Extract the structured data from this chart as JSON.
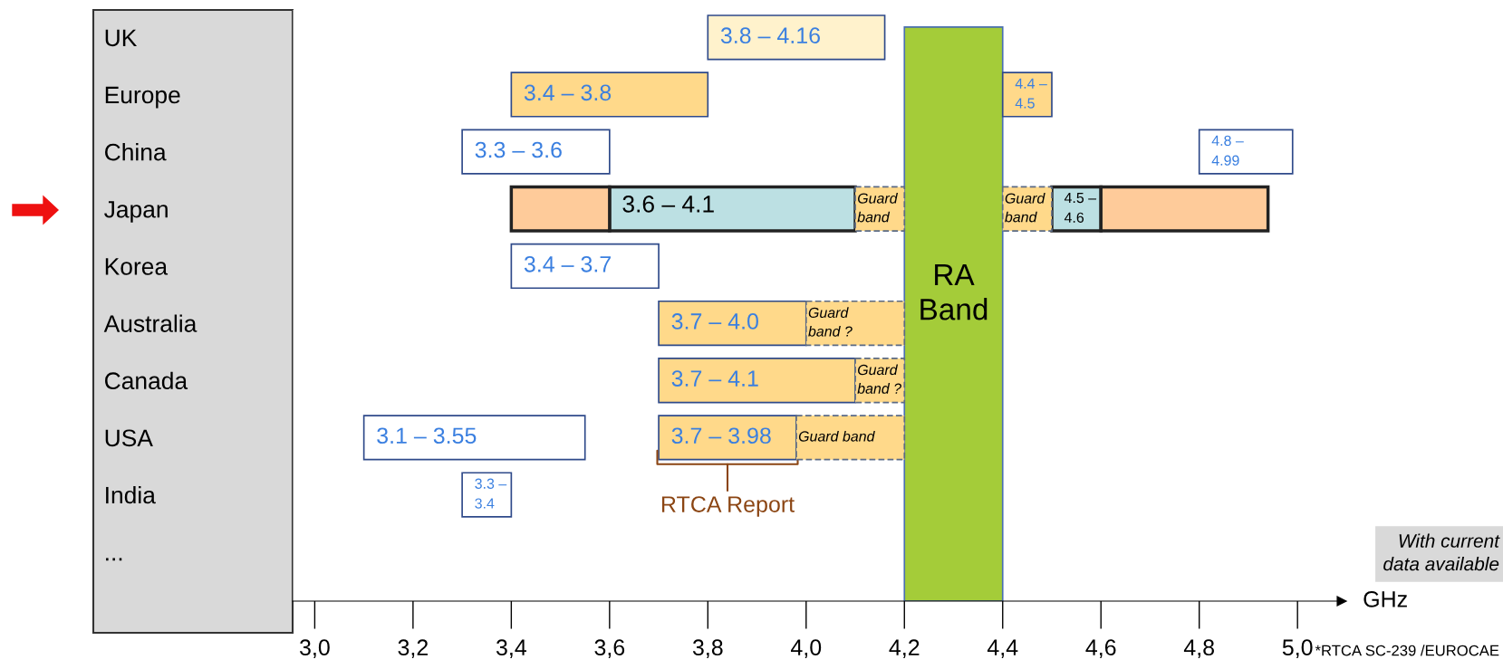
{
  "chart_data": {
    "type": "bar",
    "orientation": "horizontal",
    "categories": [
      "UK",
      "Europe",
      "China",
      "Japan",
      "Korea",
      "Australia",
      "Canada",
      "USA",
      "India",
      "..."
    ],
    "series": [
      {
        "base": [
          3.8,
          3.4,
          3.3,
          3.6,
          3.4,
          3.7,
          3.7,
          3.7,
          3.3,
          null
        ],
        "values": [
          0.36,
          0.4,
          0.3,
          0.5,
          0.3,
          0.3,
          0.4,
          0.28,
          0.1,
          null
        ],
        "colors": [
          "#fff2cc",
          "#ffd98a",
          "#ffffff",
          "#bce0e3",
          "#ffffff",
          "#ffd98a",
          "#ffd98a",
          "#ffd98a",
          "#ffffff",
          null
        ]
      },
      {
        "base": [
          null,
          4.4,
          4.8,
          4.5,
          null,
          null,
          null,
          3.1,
          null,
          null
        ],
        "values": [
          null,
          0.1,
          0.19,
          0.1,
          null,
          null,
          null,
          0.45,
          null,
          null
        ],
        "colors": [
          null,
          "#ffd98a",
          "#ffffff",
          "#bce0e3",
          null,
          null,
          null,
          "#ffffff",
          null,
          null
        ]
      },
      {
        "base": [
          null,
          null,
          null,
          3.4,
          null,
          null,
          null,
          null,
          null,
          null
        ],
        "values": [
          null,
          null,
          null,
          0.2,
          null,
          null,
          null,
          null,
          null,
          null
        ],
        "colors": [
          null,
          null,
          null,
          "#fecb9a",
          null,
          null,
          null,
          null,
          null,
          null
        ]
      },
      {
        "base": [
          null,
          null,
          null,
          4.6,
          null,
          null,
          null,
          null,
          null,
          null
        ],
        "values": [
          null,
          null,
          null,
          0.34,
          null,
          null,
          null,
          null,
          null,
          null
        ],
        "colors": [
          null,
          null,
          null,
          "#fecb9a",
          null,
          null,
          null,
          null,
          null,
          null
        ]
      },
      {
        "line_style": "dashed",
        "base": [
          null,
          null,
          null,
          4.1,
          null,
          4.0,
          4.1,
          3.98,
          null,
          null
        ],
        "values": [
          null,
          null,
          null,
          0.1,
          null,
          0.2,
          0.1,
          0.22,
          null,
          null
        ],
        "colors": [
          null,
          null,
          null,
          "#ffd98a",
          null,
          "#ffd98a",
          "#ffd98a",
          "#ffd98a",
          null,
          null
        ]
      },
      {
        "line_style": "dashed",
        "base": [
          null,
          null,
          null,
          4.4,
          null,
          null,
          null,
          null,
          null,
          null
        ],
        "values": [
          null,
          null,
          null,
          0.1,
          null,
          null,
          null,
          null,
          null,
          null
        ],
        "colors": [
          null,
          null,
          null,
          "#ffd98a",
          null,
          null,
          null,
          null,
          null,
          null
        ]
      }
    ],
    "bands": [
      {
        "axis": "x",
        "from": 4.2,
        "to": 4.4,
        "label": "RA\nBand",
        "color": "#a4cc39"
      }
    ],
    "xlim": [
      2.955,
      5.09
    ],
    "xticks": [
      {
        "value": 3.0,
        "label": "3,0"
      },
      {
        "value": 3.2,
        "label": "3,2"
      },
      {
        "value": 3.4,
        "label": "3,4"
      },
      {
        "value": 3.6,
        "label": "3,6"
      },
      {
        "value": 3.8,
        "label": "3,8"
      },
      {
        "value": 4.0,
        "label": "4,0"
      },
      {
        "value": 4.2,
        "label": "4,2"
      },
      {
        "value": 4.4,
        "label": "4,4"
      },
      {
        "value": 4.6,
        "label": "4,6"
      },
      {
        "value": 4.8,
        "label": "4,8"
      },
      {
        "value": 5.0,
        "label": "5,0"
      }
    ],
    "xlabel": "GHz",
    "annotations": [
      {
        "text": "3.8 – 4.16",
        "x": 3.8,
        "y": "UK"
      },
      {
        "text": "3.4 – 3.8",
        "x": 3.4,
        "y": "Europe"
      },
      {
        "text": "4.4 –\n4.5",
        "x": 4.4,
        "y": "Europe"
      },
      {
        "text": "3.3 – 3.6",
        "x": 3.3,
        "y": "China"
      },
      {
        "text": "4.8 –\n4.99",
        "x": 4.8,
        "y": "China"
      },
      {
        "text": "3.6 – 4.1",
        "x": 3.6,
        "y": "Japan"
      },
      {
        "text": "Guard\nband",
        "x": 4.1,
        "y": "Japan"
      },
      {
        "text": "Guard\nband",
        "x": 4.4,
        "y": "Japan"
      },
      {
        "text": "4.5 –\n4.6",
        "x": 4.5,
        "y": "Japan"
      },
      {
        "text": "3.4 – 3.7",
        "x": 3.4,
        "y": "Korea"
      },
      {
        "text": "3.7 – 4.0",
        "x": 3.7,
        "y": "Australia"
      },
      {
        "text": "Guard\nband ?",
        "x": 4.0,
        "y": "Australia"
      },
      {
        "text": "3.7 – 4.1",
        "x": 3.7,
        "y": "Canada"
      },
      {
        "text": "Guard\nband ?",
        "x": 4.1,
        "y": "Canada"
      },
      {
        "text": "3.1 – 3.55",
        "x": 3.1,
        "y": "USA"
      },
      {
        "text": "3.7 – 3.98",
        "x": 3.7,
        "y": "USA"
      },
      {
        "text": "Guard band",
        "x": 3.98,
        "y": "USA"
      },
      {
        "text": "3.3 –\n3.4",
        "x": 3.3,
        "y": "India"
      },
      {
        "text": "RTCA Report",
        "x": 3.84,
        "y": "USA"
      },
      "With current\ndata available",
      "*RTCA SC-239 /EUROCAE"
    ]
  }
}
